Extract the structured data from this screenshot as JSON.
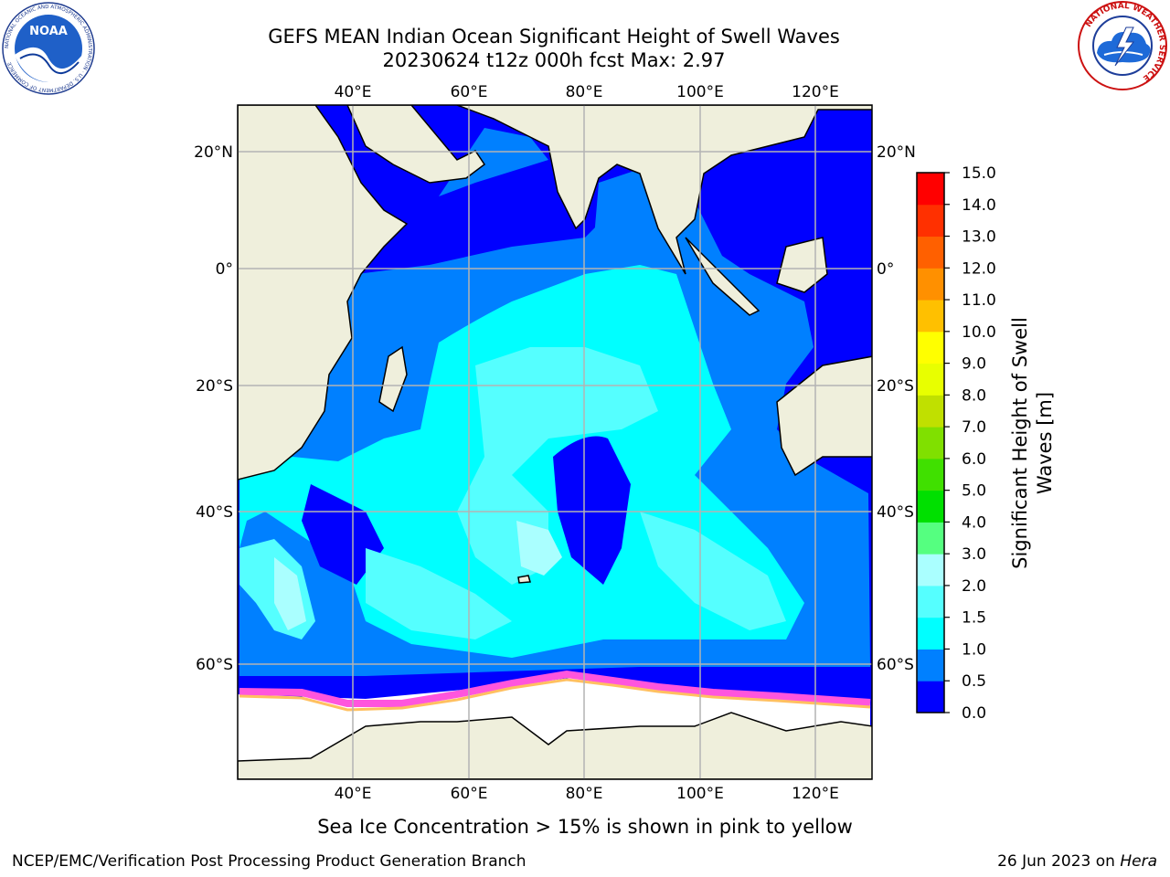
{
  "title": {
    "line1": "GEFS MEAN Indian Ocean Significant Height of Swell Waves",
    "line2": "20230624 t12z 000h fcst   Max: 2.97"
  },
  "logos": {
    "left": {
      "icon": "noaa-logo",
      "text": "NOAA",
      "ring": "NATIONAL OCEANIC AND ATMOSPHERIC ADMINISTRATION · U.S. DEPARTMENT OF COMMERCE"
    },
    "right": {
      "icon": "national-weather-service-logo",
      "ring": "NATIONAL WEATHER SERVICE"
    }
  },
  "map": {
    "lon_ticks": [
      "40°E",
      "60°E",
      "80°E",
      "100°E",
      "120°E"
    ],
    "lat_ticks": [
      "20°N",
      "0°",
      "20°S",
      "40°S",
      "60°S"
    ],
    "extent": {
      "lon": [
        20,
        130
      ],
      "lat": [
        -75,
        27
      ]
    },
    "grid": true,
    "land_color": "#efefdc",
    "ice_color": "#ff55dd"
  },
  "colorbar": {
    "label_line1": "Significant Height of Swell",
    "label_line2": "Waves [m]",
    "ticks": [
      "0.0",
      "0.5",
      "1.0",
      "1.5",
      "2.0",
      "3.0",
      "4.0",
      "5.0",
      "6.0",
      "7.0",
      "8.0",
      "9.0",
      "10.0",
      "11.0",
      "12.0",
      "13.0",
      "14.0",
      "15.0"
    ],
    "colors": [
      "#0000ff",
      "#0080ff",
      "#00ffff",
      "#55ffff",
      "#aaffff",
      "#55ff80",
      "#00e000",
      "#40e000",
      "#80e000",
      "#c0e000",
      "#e8ff00",
      "#ffff00",
      "#ffc000",
      "#ff9000",
      "#ff6000",
      "#ff3000",
      "#ff0000"
    ]
  },
  "footer": {
    "note": "Sea Ice Concentration > 15% is shown in pink to yellow",
    "credit_left": "NCEP/EMC/Verification Post Processing Product Generation Branch",
    "credit_right_date": "26 Jun 2023 on ",
    "credit_right_host": "Hera"
  }
}
